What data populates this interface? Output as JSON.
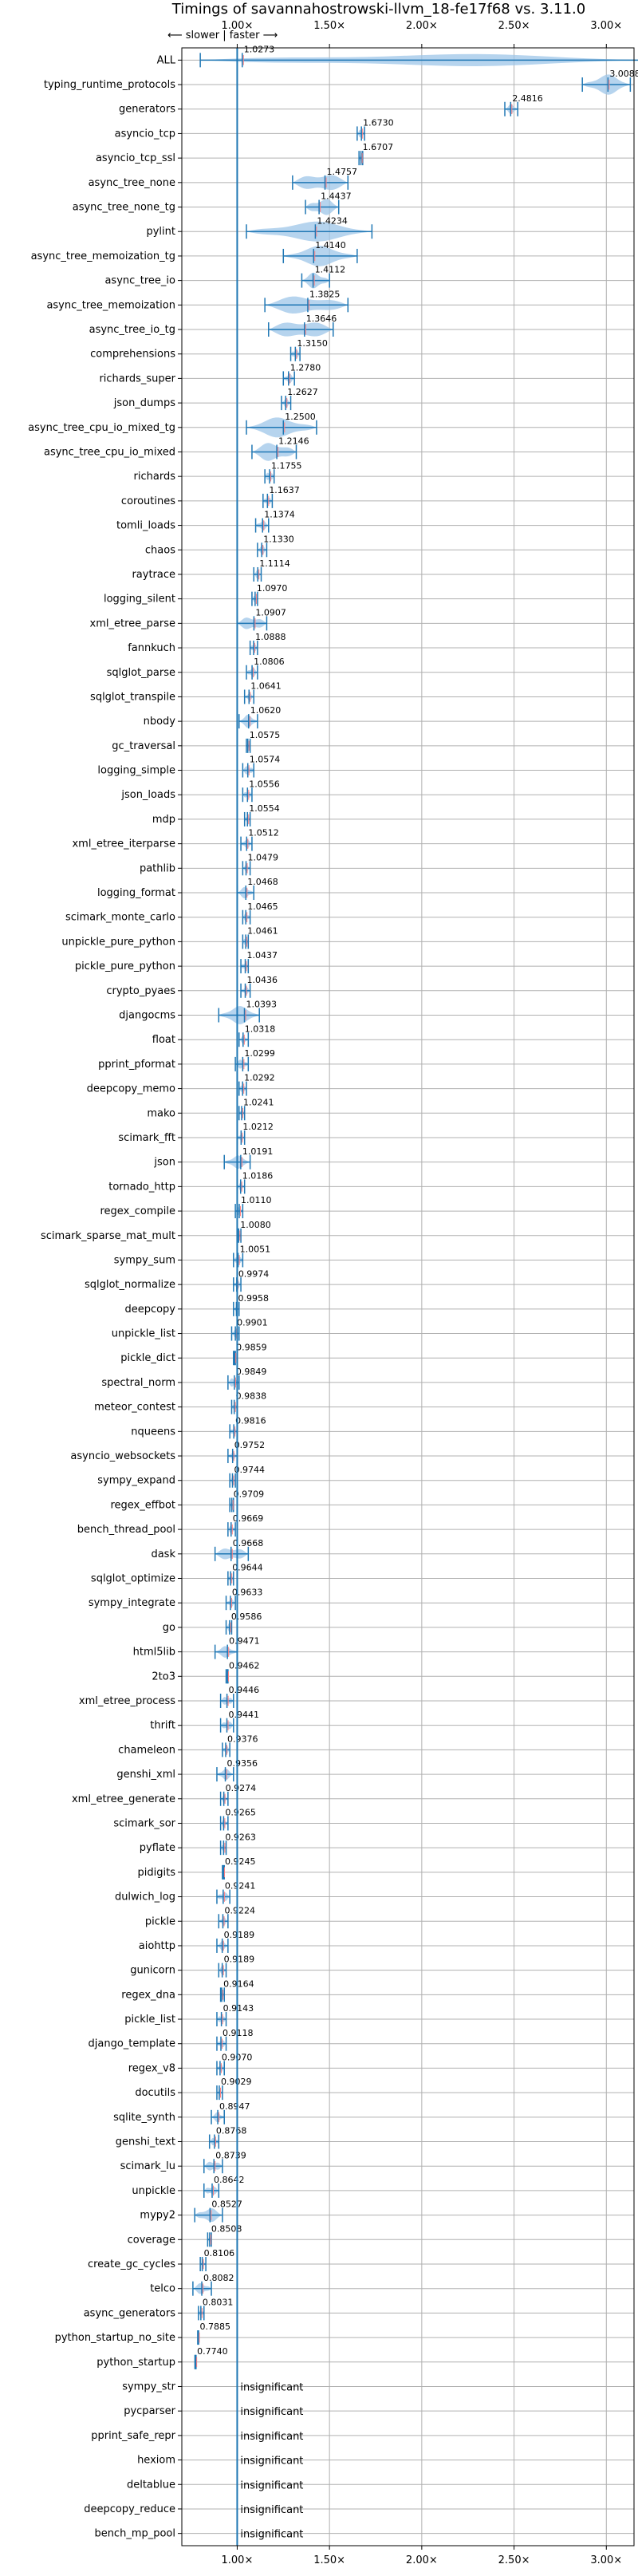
{
  "chart_data": {
    "type": "violin",
    "title": "Timings of savannahostrowski-llvm_18-fe17f68 vs. 3.11.0",
    "direction_label": "⟵ slower | faster ⟶",
    "x_ticks": [
      {
        "value": 1.0,
        "label": "1.00×"
      },
      {
        "value": 1.5,
        "label": "1.50×"
      },
      {
        "value": 2.0,
        "label": "2.00×"
      },
      {
        "value": 2.5,
        "label": "2.50×"
      },
      {
        "value": 3.0,
        "label": "3.00×"
      }
    ],
    "xlim": [
      0.7,
      3.15
    ],
    "reference_line": 1.0,
    "grid": true,
    "insignificant_label": "insignificant",
    "colors": {
      "violin": "#9ec5e8",
      "median": "#1f77b4",
      "mean": "#ff7f7f",
      "reference": "#1f77b4"
    },
    "benchmarks": [
      {
        "name": "ALL",
        "value": 1.0273,
        "label": "1.0273",
        "min": 0.8,
        "max": 3.2,
        "spread": 0.05
      },
      {
        "name": "typing_runtime_protocols",
        "value": 3.0088,
        "label": "3.0088",
        "min": 2.87,
        "max": 3.13,
        "spread": 0.12
      },
      {
        "name": "generators",
        "value": 2.4816,
        "label": "2.4816",
        "min": 2.45,
        "max": 2.52,
        "spread": 0.03
      },
      {
        "name": "asyncio_tcp",
        "value": 1.673,
        "label": "1.6730",
        "min": 1.65,
        "max": 1.69,
        "spread": 0.02
      },
      {
        "name": "asyncio_tcp_ssl",
        "value": 1.6707,
        "label": "1.6707",
        "min": 1.66,
        "max": 1.68,
        "spread": 0.01
      },
      {
        "name": "async_tree_none",
        "value": 1.4757,
        "label": "1.4757",
        "min": 1.3,
        "max": 1.6,
        "spread": 0.15
      },
      {
        "name": "async_tree_none_tg",
        "value": 1.4437,
        "label": "1.4437",
        "min": 1.37,
        "max": 1.55,
        "spread": 0.08
      },
      {
        "name": "pylint",
        "value": 1.4234,
        "label": "1.4234",
        "min": 1.05,
        "max": 1.73,
        "spread": 0.3
      },
      {
        "name": "async_tree_memoization_tg",
        "value": 1.414,
        "label": "1.4140",
        "min": 1.25,
        "max": 1.65,
        "spread": 0.14
      },
      {
        "name": "async_tree_io",
        "value": 1.4112,
        "label": "1.4112",
        "min": 1.35,
        "max": 1.5,
        "spread": 0.07
      },
      {
        "name": "async_tree_memoization",
        "value": 1.3825,
        "label": "1.3825",
        "min": 1.15,
        "max": 1.6,
        "spread": 0.18
      },
      {
        "name": "async_tree_io_tg",
        "value": 1.3646,
        "label": "1.3646",
        "min": 1.17,
        "max": 1.52,
        "spread": 0.15
      },
      {
        "name": "comprehensions",
        "value": 1.315,
        "label": "1.3150",
        "min": 1.29,
        "max": 1.34,
        "spread": 0.03
      },
      {
        "name": "richards_super",
        "value": 1.278,
        "label": "1.2780",
        "min": 1.25,
        "max": 1.31,
        "spread": 0.03
      },
      {
        "name": "json_dumps",
        "value": 1.2627,
        "label": "1.2627",
        "min": 1.24,
        "max": 1.29,
        "spread": 0.03
      },
      {
        "name": "async_tree_cpu_io_mixed_tg",
        "value": 1.25,
        "label": "1.2500",
        "min": 1.05,
        "max": 1.43,
        "spread": 0.18
      },
      {
        "name": "async_tree_cpu_io_mixed",
        "value": 1.2146,
        "label": "1.2146",
        "min": 1.08,
        "max": 1.32,
        "spread": 0.1
      },
      {
        "name": "richards",
        "value": 1.1755,
        "label": "1.1755",
        "min": 1.15,
        "max": 1.2,
        "spread": 0.03
      },
      {
        "name": "coroutines",
        "value": 1.1637,
        "label": "1.1637",
        "min": 1.14,
        "max": 1.19,
        "spread": 0.02
      },
      {
        "name": "tomli_loads",
        "value": 1.1374,
        "label": "1.1374",
        "min": 1.1,
        "max": 1.17,
        "spread": 0.03
      },
      {
        "name": "chaos",
        "value": 1.133,
        "label": "1.1330",
        "min": 1.11,
        "max": 1.16,
        "spread": 0.03
      },
      {
        "name": "raytrace",
        "value": 1.1114,
        "label": "1.1114",
        "min": 1.09,
        "max": 1.13,
        "spread": 0.02
      },
      {
        "name": "logging_silent",
        "value": 1.097,
        "label": "1.0970",
        "min": 1.08,
        "max": 1.11,
        "spread": 0.01
      },
      {
        "name": "xml_etree_parse",
        "value": 1.0907,
        "label": "1.0907",
        "min": 1.0,
        "max": 1.16,
        "spread": 0.06
      },
      {
        "name": "fannkuch",
        "value": 1.0888,
        "label": "1.0888",
        "min": 1.07,
        "max": 1.11,
        "spread": 0.02
      },
      {
        "name": "sqlglot_parse",
        "value": 1.0806,
        "label": "1.0806",
        "min": 1.05,
        "max": 1.11,
        "spread": 0.03
      },
      {
        "name": "sqlglot_transpile",
        "value": 1.0641,
        "label": "1.0641",
        "min": 1.04,
        "max": 1.09,
        "spread": 0.02
      },
      {
        "name": "nbody",
        "value": 1.062,
        "label": "1.0620",
        "min": 1.01,
        "max": 1.11,
        "spread": 0.05
      },
      {
        "name": "gc_traversal",
        "value": 1.0575,
        "label": "1.0575",
        "min": 1.05,
        "max": 1.07,
        "spread": 0.01
      },
      {
        "name": "logging_simple",
        "value": 1.0574,
        "label": "1.0574",
        "min": 1.03,
        "max": 1.09,
        "spread": 0.03
      },
      {
        "name": "json_loads",
        "value": 1.0556,
        "label": "1.0556",
        "min": 1.03,
        "max": 1.08,
        "spread": 0.02
      },
      {
        "name": "mdp",
        "value": 1.0554,
        "label": "1.0554",
        "min": 1.04,
        "max": 1.07,
        "spread": 0.02
      },
      {
        "name": "xml_etree_iterparse",
        "value": 1.0512,
        "label": "1.0512",
        "min": 1.02,
        "max": 1.08,
        "spread": 0.03
      },
      {
        "name": "pathlib",
        "value": 1.0479,
        "label": "1.0479",
        "min": 1.03,
        "max": 1.07,
        "spread": 0.02
      },
      {
        "name": "logging_format",
        "value": 1.0468,
        "label": "1.0468",
        "min": 1.0,
        "max": 1.09,
        "spread": 0.04
      },
      {
        "name": "scimark_monte_carlo",
        "value": 1.0465,
        "label": "1.0465",
        "min": 1.03,
        "max": 1.07,
        "spread": 0.02
      },
      {
        "name": "unpickle_pure_python",
        "value": 1.0461,
        "label": "1.0461",
        "min": 1.03,
        "max": 1.06,
        "spread": 0.02
      },
      {
        "name": "pickle_pure_python",
        "value": 1.0437,
        "label": "1.0437",
        "min": 1.02,
        "max": 1.06,
        "spread": 0.02
      },
      {
        "name": "crypto_pyaes",
        "value": 1.0436,
        "label": "1.0436",
        "min": 1.02,
        "max": 1.07,
        "spread": 0.02
      },
      {
        "name": "djangocms",
        "value": 1.0393,
        "label": "1.0393",
        "min": 0.9,
        "max": 1.12,
        "spread": 0.08
      },
      {
        "name": "float",
        "value": 1.0318,
        "label": "1.0318",
        "min": 1.01,
        "max": 1.06,
        "spread": 0.02
      },
      {
        "name": "pprint_pformat",
        "value": 1.0299,
        "label": "1.0299",
        "min": 0.99,
        "max": 1.06,
        "spread": 0.03
      },
      {
        "name": "deepcopy_memo",
        "value": 1.0292,
        "label": "1.0292",
        "min": 1.01,
        "max": 1.05,
        "spread": 0.02
      },
      {
        "name": "mako",
        "value": 1.0241,
        "label": "1.0241",
        "min": 1.01,
        "max": 1.04,
        "spread": 0.01
      },
      {
        "name": "scimark_fft",
        "value": 1.0212,
        "label": "1.0212",
        "min": 1.0,
        "max": 1.04,
        "spread": 0.02
      },
      {
        "name": "json",
        "value": 1.0191,
        "label": "1.0191",
        "min": 0.93,
        "max": 1.07,
        "spread": 0.05
      },
      {
        "name": "tornado_http",
        "value": 1.0186,
        "label": "1.0186",
        "min": 1.0,
        "max": 1.04,
        "spread": 0.02
      },
      {
        "name": "regex_compile",
        "value": 1.011,
        "label": "1.0110",
        "min": 0.99,
        "max": 1.03,
        "spread": 0.02
      },
      {
        "name": "scimark_sparse_mat_mult",
        "value": 1.008,
        "label": "1.0080",
        "min": 1.0,
        "max": 1.02,
        "spread": 0.01
      },
      {
        "name": "sympy_sum",
        "value": 1.0051,
        "label": "1.0051",
        "min": 0.98,
        "max": 1.03,
        "spread": 0.02
      },
      {
        "name": "sqlglot_normalize",
        "value": 0.9974,
        "label": "0.9974",
        "min": 0.98,
        "max": 1.02,
        "spread": 0.02
      },
      {
        "name": "deepcopy",
        "value": 0.9958,
        "label": "0.9958",
        "min": 0.98,
        "max": 1.01,
        "spread": 0.01
      },
      {
        "name": "unpickle_list",
        "value": 0.9901,
        "label": "0.9901",
        "min": 0.97,
        "max": 1.01,
        "spread": 0.02
      },
      {
        "name": "pickle_dict",
        "value": 0.9859,
        "label": "0.9859",
        "min": 0.98,
        "max": 0.99,
        "spread": 0.01
      },
      {
        "name": "spectral_norm",
        "value": 0.9849,
        "label": "0.9849",
        "min": 0.95,
        "max": 1.01,
        "spread": 0.03
      },
      {
        "name": "meteor_contest",
        "value": 0.9838,
        "label": "0.9838",
        "min": 0.97,
        "max": 1.0,
        "spread": 0.01
      },
      {
        "name": "nqueens",
        "value": 0.9816,
        "label": "0.9816",
        "min": 0.96,
        "max": 1.0,
        "spread": 0.02
      },
      {
        "name": "asyncio_websockets",
        "value": 0.9752,
        "label": "0.9752",
        "min": 0.95,
        "max": 1.0,
        "spread": 0.02
      },
      {
        "name": "sympy_expand",
        "value": 0.9744,
        "label": "0.9744",
        "min": 0.96,
        "max": 0.99,
        "spread": 0.02
      },
      {
        "name": "regex_effbot",
        "value": 0.9709,
        "label": "0.9709",
        "min": 0.96,
        "max": 0.98,
        "spread": 0.01
      },
      {
        "name": "bench_thread_pool",
        "value": 0.9669,
        "label": "0.9669",
        "min": 0.95,
        "max": 0.99,
        "spread": 0.02
      },
      {
        "name": "dask",
        "value": 0.9668,
        "label": "0.9668",
        "min": 0.88,
        "max": 1.06,
        "spread": 0.06
      },
      {
        "name": "sqlglot_optimize",
        "value": 0.9644,
        "label": "0.9644",
        "min": 0.95,
        "max": 0.98,
        "spread": 0.01
      },
      {
        "name": "sympy_integrate",
        "value": 0.9633,
        "label": "0.9633",
        "min": 0.94,
        "max": 0.99,
        "spread": 0.02
      },
      {
        "name": "go",
        "value": 0.9586,
        "label": "0.9586",
        "min": 0.94,
        "max": 0.97,
        "spread": 0.02
      },
      {
        "name": "html5lib",
        "value": 0.9471,
        "label": "0.9471",
        "min": 0.88,
        "max": 1.0,
        "spread": 0.04
      },
      {
        "name": "2to3",
        "value": 0.9462,
        "label": "0.9462",
        "min": 0.94,
        "max": 0.95,
        "spread": 0.01
      },
      {
        "name": "xml_etree_process",
        "value": 0.9446,
        "label": "0.9446",
        "min": 0.91,
        "max": 0.98,
        "spread": 0.03
      },
      {
        "name": "thrift",
        "value": 0.9441,
        "label": "0.9441",
        "min": 0.91,
        "max": 0.98,
        "spread": 0.03
      },
      {
        "name": "chameleon",
        "value": 0.9376,
        "label": "0.9376",
        "min": 0.92,
        "max": 0.96,
        "spread": 0.02
      },
      {
        "name": "genshi_xml",
        "value": 0.9356,
        "label": "0.9356",
        "min": 0.89,
        "max": 0.98,
        "spread": 0.04
      },
      {
        "name": "xml_etree_generate",
        "value": 0.9274,
        "label": "0.9274",
        "min": 0.91,
        "max": 0.95,
        "spread": 0.02
      },
      {
        "name": "scimark_sor",
        "value": 0.9265,
        "label": "0.9265",
        "min": 0.91,
        "max": 0.95,
        "spread": 0.02
      },
      {
        "name": "pyflate",
        "value": 0.9263,
        "label": "0.9263",
        "min": 0.91,
        "max": 0.94,
        "spread": 0.01
      },
      {
        "name": "pidigits",
        "value": 0.9245,
        "label": "0.9245",
        "min": 0.92,
        "max": 0.93,
        "spread": 0.005
      },
      {
        "name": "dulwich_log",
        "value": 0.9241,
        "label": "0.9241",
        "min": 0.89,
        "max": 0.96,
        "spread": 0.03
      },
      {
        "name": "pickle",
        "value": 0.9224,
        "label": "0.9224",
        "min": 0.9,
        "max": 0.95,
        "spread": 0.02
      },
      {
        "name": "aiohttp",
        "value": 0.9189,
        "label": "0.9189",
        "min": 0.89,
        "max": 0.95,
        "spread": 0.03
      },
      {
        "name": "gunicorn",
        "value": 0.9189,
        "label": "0.9189",
        "min": 0.9,
        "max": 0.94,
        "spread": 0.02
      },
      {
        "name": "regex_dna",
        "value": 0.9164,
        "label": "0.9164",
        "min": 0.91,
        "max": 0.93,
        "spread": 0.01
      },
      {
        "name": "pickle_list",
        "value": 0.9143,
        "label": "0.9143",
        "min": 0.89,
        "max": 0.94,
        "spread": 0.02
      },
      {
        "name": "django_template",
        "value": 0.9118,
        "label": "0.9118",
        "min": 0.89,
        "max": 0.94,
        "spread": 0.02
      },
      {
        "name": "regex_v8",
        "value": 0.907,
        "label": "0.9070",
        "min": 0.89,
        "max": 0.93,
        "spread": 0.02
      },
      {
        "name": "docutils",
        "value": 0.9029,
        "label": "0.9029",
        "min": 0.89,
        "max": 0.92,
        "spread": 0.01
      },
      {
        "name": "sqlite_synth",
        "value": 0.8947,
        "label": "0.8947",
        "min": 0.86,
        "max": 0.93,
        "spread": 0.03
      },
      {
        "name": "genshi_text",
        "value": 0.8768,
        "label": "0.8768",
        "min": 0.85,
        "max": 0.9,
        "spread": 0.02
      },
      {
        "name": "scimark_lu",
        "value": 0.8739,
        "label": "0.8739",
        "min": 0.82,
        "max": 0.92,
        "spread": 0.04
      },
      {
        "name": "unpickle",
        "value": 0.8642,
        "label": "0.8642",
        "min": 0.82,
        "max": 0.9,
        "spread": 0.03
      },
      {
        "name": "mypy2",
        "value": 0.8527,
        "label": "0.8527",
        "min": 0.77,
        "max": 0.92,
        "spread": 0.06
      },
      {
        "name": "coverage",
        "value": 0.8508,
        "label": "0.8508",
        "min": 0.84,
        "max": 0.86,
        "spread": 0.01
      },
      {
        "name": "create_gc_cycles",
        "value": 0.8106,
        "label": "0.8106",
        "min": 0.8,
        "max": 0.83,
        "spread": 0.01
      },
      {
        "name": "telco",
        "value": 0.8082,
        "label": "0.8082",
        "min": 0.76,
        "max": 0.86,
        "spread": 0.04
      },
      {
        "name": "async_generators",
        "value": 0.8031,
        "label": "0.8031",
        "min": 0.79,
        "max": 0.82,
        "spread": 0.01
      },
      {
        "name": "python_startup_no_site",
        "value": 0.7885,
        "label": "0.7885",
        "min": 0.786,
        "max": 0.791,
        "spread": 0.004
      },
      {
        "name": "python_startup",
        "value": 0.774,
        "label": "0.7740",
        "min": 0.771,
        "max": 0.777,
        "spread": 0.004
      },
      {
        "name": "sympy_str",
        "value": null,
        "label": ""
      },
      {
        "name": "pycparser",
        "value": null,
        "label": ""
      },
      {
        "name": "pprint_safe_repr",
        "value": null,
        "label": ""
      },
      {
        "name": "hexiom",
        "value": null,
        "label": ""
      },
      {
        "name": "deltablue",
        "value": null,
        "label": ""
      },
      {
        "name": "deepcopy_reduce",
        "value": null,
        "label": ""
      },
      {
        "name": "bench_mp_pool",
        "value": null,
        "label": ""
      }
    ]
  }
}
